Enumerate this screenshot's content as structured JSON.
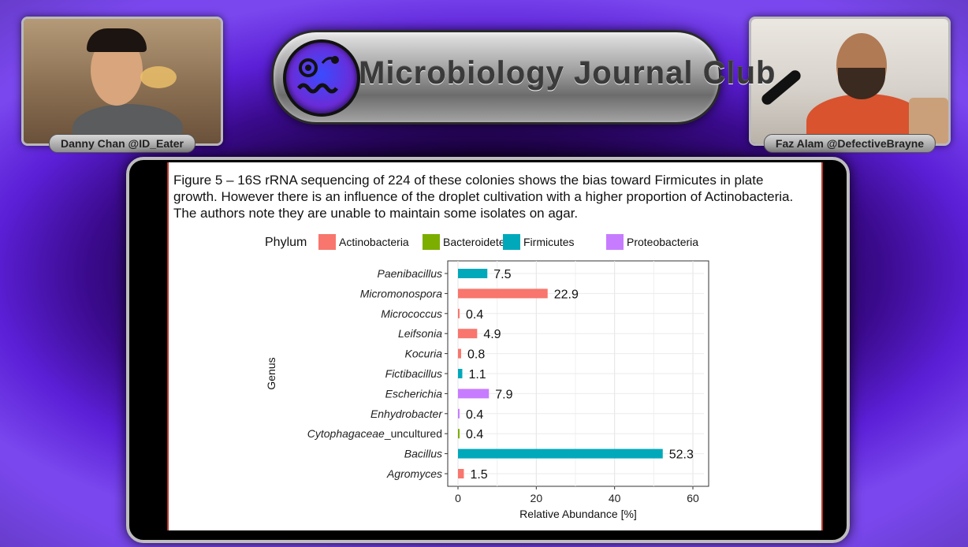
{
  "banner": {
    "title": "Microbiology Journal Club"
  },
  "participants": [
    {
      "name": "Danny Chan @ID_Eater"
    },
    {
      "name": "Faz Alam @DefectiveBrayne"
    }
  ],
  "slide": {
    "caption": "Figure 5 – 16S rRNA sequencing of 224 of these colonies shows the bias toward Firmicutes in plate growth. However there is an influence of the droplet cultivation with a higher proportion of Actinobacteria. The authors note they are unable to maintain some isolates on agar."
  },
  "chart_data": {
    "type": "bar",
    "orientation": "horizontal",
    "legend_title": "Phylum",
    "legend_position": "top",
    "phyla": [
      {
        "name": "Actinobacteria",
        "color": "#F8766D"
      },
      {
        "name": "Bacteroidetes",
        "color": "#7CAE00"
      },
      {
        "name": "Firmicutes",
        "color": "#00A9BA"
      },
      {
        "name": "Proteobacteria",
        "color": "#C77CFF"
      }
    ],
    "categories": [
      {
        "genus": "Paenibacillus",
        "suffix": "",
        "value": 7.5,
        "label": "7.5",
        "phylum": "Firmicutes"
      },
      {
        "genus": "Micromonospora",
        "suffix": "",
        "value": 22.9,
        "label": "22.9",
        "phylum": "Actinobacteria"
      },
      {
        "genus": "Micrococcus",
        "suffix": "",
        "value": 0.4,
        "label": "0.4",
        "phylum": "Actinobacteria"
      },
      {
        "genus": "Leifsonia",
        "suffix": "",
        "value": 4.9,
        "label": "4.9",
        "phylum": "Actinobacteria"
      },
      {
        "genus": "Kocuria",
        "suffix": "",
        "value": 0.8,
        "label": "0.8",
        "phylum": "Actinobacteria"
      },
      {
        "genus": "Fictibacillus",
        "suffix": "",
        "value": 1.1,
        "label": "1.1",
        "phylum": "Firmicutes"
      },
      {
        "genus": "Escherichia",
        "suffix": "",
        "value": 7.9,
        "label": "7.9",
        "phylum": "Proteobacteria"
      },
      {
        "genus": "Enhydrobacter",
        "suffix": "",
        "value": 0.4,
        "label": "0.4",
        "phylum": "Proteobacteria"
      },
      {
        "genus": "Cytophagaceae",
        "suffix": "_uncultured",
        "value": 0.4,
        "label": "0.4",
        "phylum": "Bacteroidetes"
      },
      {
        "genus": "Bacillus",
        "suffix": "",
        "value": 52.3,
        "label": "52.3",
        "phylum": "Firmicutes"
      },
      {
        "genus": "Agromyces",
        "suffix": "",
        "value": 1.5,
        "label": "1.5",
        "phylum": "Actinobacteria"
      }
    ],
    "xlabel": "Relative Abundance [%]",
    "ylabel": "Genus",
    "xlim": [
      0,
      63
    ],
    "xticks": [
      0,
      20,
      40,
      60
    ],
    "grid": true
  }
}
